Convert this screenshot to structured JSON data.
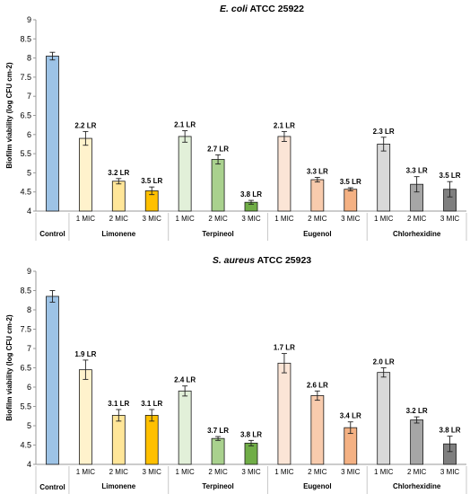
{
  "chart_data": [
    {
      "type": "bar",
      "title_italic": "E. coli",
      "title_rest": " ATCC 25922",
      "ylabel": "Biofilm viability (log CFU cm-2)",
      "ylim": [
        4,
        9
      ],
      "yticks": [
        "4",
        "4.5",
        "5",
        "5.5",
        "6",
        "6.5",
        "7",
        "7.5",
        "8",
        "8.5",
        "9"
      ],
      "categories": [
        "",
        "1 MIC",
        "2 MIC",
        "3 MIC",
        "1 MIC",
        "2 MIC",
        "3 MIC",
        "1 MIC",
        "2 MIC",
        "3 MIC",
        "1 MIC",
        "2 MIC",
        "3 MIC"
      ],
      "groups": [
        "Control",
        "Limonene",
        "Terpineol",
        "Eugenol",
        "Chlorhexidine"
      ],
      "values": [
        8.05,
        5.9,
        4.78,
        4.53,
        5.95,
        5.35,
        4.23,
        5.95,
        4.82,
        4.57,
        5.75,
        4.7,
        4.57
      ],
      "errors": [
        0.1,
        0.18,
        0.07,
        0.1,
        0.15,
        0.12,
        0.05,
        0.13,
        0.06,
        0.04,
        0.18,
        0.2,
        0.2
      ],
      "labels": [
        "",
        "2.2 LR",
        "3.2 LR",
        "3.5 LR",
        "2.1 LR",
        "2.7 LR",
        "3.8 LR",
        "2.1 LR",
        "3.3 LR",
        "3.5 LR",
        "2.3 LR",
        "3.3 LR",
        "3.5 LR"
      ],
      "colors": [
        "#9dc3e6",
        "#fff2cc",
        "#ffe699",
        "#ffc000",
        "#e2f0d9",
        "#a9d18e",
        "#70ad47",
        "#fbe5d6",
        "#f8cbad",
        "#f4b183",
        "#d9d9d9",
        "#a6a6a6",
        "#7f7f7f"
      ],
      "grid": false
    },
    {
      "type": "bar",
      "title_italic": "S. aureus",
      "title_rest": " ATCC 25923",
      "ylabel": "Biofilm viability (log CFU cm-2)",
      "ylim": [
        4,
        9
      ],
      "yticks": [
        "4",
        "4.5",
        "5",
        "5.5",
        "6",
        "6.5",
        "7",
        "7.5",
        "8",
        "8.5",
        "9"
      ],
      "categories": [
        "",
        "1 MIC",
        "2 MIC",
        "3 MIC",
        "1 MIC",
        "2 MIC",
        "3 MIC",
        "1 MIC",
        "2 MIC",
        "3 MIC",
        "1 MIC",
        "2 MIC",
        "3 MIC"
      ],
      "groups": [
        "Control",
        "Limonene",
        "Terpineol",
        "Eugenol",
        "Chlorhexidine"
      ],
      "values": [
        8.35,
        6.45,
        5.27,
        5.27,
        5.9,
        4.67,
        4.55,
        6.62,
        5.78,
        4.95,
        6.38,
        5.15,
        4.53
      ],
      "errors": [
        0.15,
        0.25,
        0.15,
        0.15,
        0.13,
        0.05,
        0.07,
        0.25,
        0.12,
        0.15,
        0.12,
        0.08,
        0.2
      ],
      "labels": [
        "",
        "1.9 LR",
        "3.1 LR",
        "3.1 LR",
        "2.4 LR",
        "3.7 LR",
        "3.8 LR",
        "1.7 LR",
        "2.6 LR",
        "3.4 LR",
        "2.0 LR",
        "3.2 LR",
        "3.8 LR"
      ],
      "colors": [
        "#9dc3e6",
        "#fff2cc",
        "#ffe699",
        "#ffc000",
        "#e2f0d9",
        "#a9d18e",
        "#70ad47",
        "#fbe5d6",
        "#f8cbad",
        "#f4b183",
        "#d9d9d9",
        "#a6a6a6",
        "#7f7f7f"
      ],
      "grid": false
    }
  ]
}
